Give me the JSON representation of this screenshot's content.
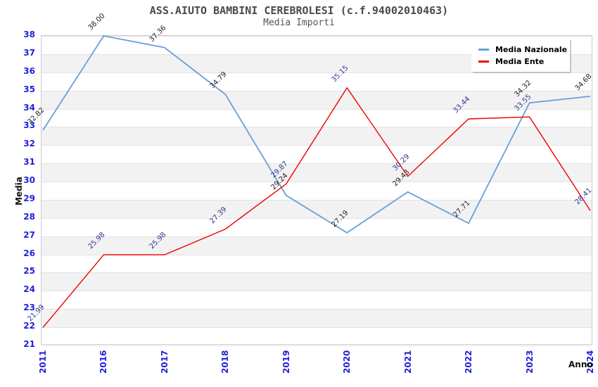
{
  "title": "ASS.AIUTO BAMBINI CEREBROLESI (c.f.94002010463)",
  "subtitle": "Media Importi",
  "chart_data": {
    "type": "line",
    "title": "ASS.AIUTO BAMBINI CEREBROLESI (c.f.94002010463)",
    "subtitle": "Media Importi",
    "xlabel": "Anno",
    "ylabel": "Media",
    "categories": [
      "2011",
      "2016",
      "2017",
      "2018",
      "2019",
      "2020",
      "2021",
      "2022",
      "2023",
      "2024"
    ],
    "series": [
      {
        "name": "Media Nazionale",
        "color": "#6b9fd8",
        "label_color": "#222222",
        "values": [
          32.82,
          38.0,
          37.36,
          34.79,
          29.24,
          27.19,
          29.43,
          27.71,
          34.32,
          34.68
        ]
      },
      {
        "name": "Media Ente",
        "color": "#ee0000",
        "label_color": "#333399",
        "values": [
          21.99,
          25.98,
          25.98,
          27.39,
          29.87,
          35.15,
          30.29,
          33.44,
          33.55,
          28.41
        ]
      }
    ],
    "ylim": [
      21,
      38
    ],
    "y_ticks": [
      21,
      22,
      23,
      24,
      25,
      26,
      27,
      28,
      29,
      30,
      31,
      32,
      33,
      34,
      35,
      36,
      37,
      38
    ],
    "grid": "horizontal-alternating-bands",
    "legend_position": "top-right",
    "value_labels": "shown, 2 decimals, rotated 45deg"
  },
  "colors": {
    "tick_label": "#2222dd",
    "band": "#f2f2f2",
    "gridline": "#e3e3e3",
    "plot_border": "#cccccc",
    "title_text": "#4a4a4a",
    "subtitle_text": "#555555",
    "legend_text": "#000000"
  }
}
